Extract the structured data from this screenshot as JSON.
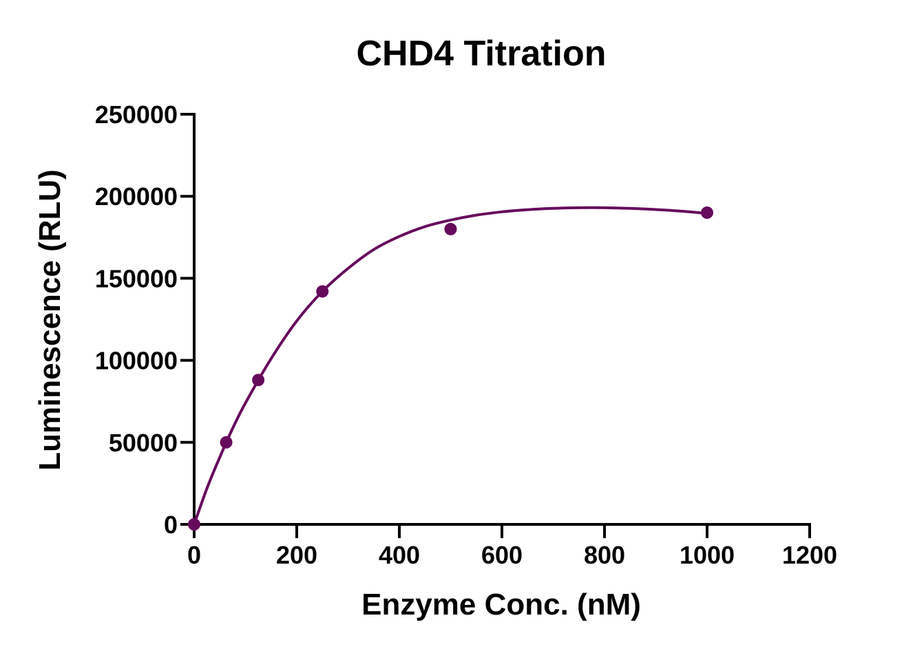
{
  "chart_data": {
    "type": "scatter",
    "title": "CHD4 Titration",
    "xlabel": "Enzyme Conc. (nM)",
    "ylabel": "Luminescence (RLU)",
    "xlim": [
      0,
      1200
    ],
    "ylim": [
      0,
      250000
    ],
    "x_ticks": [
      0,
      200,
      400,
      600,
      800,
      1000,
      1200
    ],
    "y_ticks": [
      0,
      50000,
      100000,
      150000,
      200000,
      250000
    ],
    "x_tick_labels": [
      "0",
      "200",
      "400",
      "600",
      "800",
      "1000",
      "1200"
    ],
    "y_tick_labels": [
      "0",
      "50000",
      "100000",
      "150000",
      "200000",
      "250000"
    ],
    "grid": false,
    "series": [
      {
        "x": [
          0,
          62.5,
          125,
          250,
          500,
          1000
        ],
        "y": [
          0,
          50000,
          88000,
          142000,
          180000,
          190000
        ],
        "fit_curve": {
          "x": [
            0,
            25,
            50,
            75,
            100,
            150,
            200,
            250,
            300,
            350,
            400,
            450,
            500,
            550,
            600,
            650,
            700,
            750,
            800,
            850,
            900,
            950,
            1000
          ],
          "y": [
            0,
            22000,
            41000,
            58500,
            74000,
            101000,
            124000,
            142000,
            156000,
            167500,
            175500,
            181500,
            185500,
            188500,
            190500,
            191800,
            192600,
            193000,
            193000,
            192600,
            191900,
            190900,
            189500
          ]
        }
      }
    ],
    "color": "#660a5c"
  }
}
